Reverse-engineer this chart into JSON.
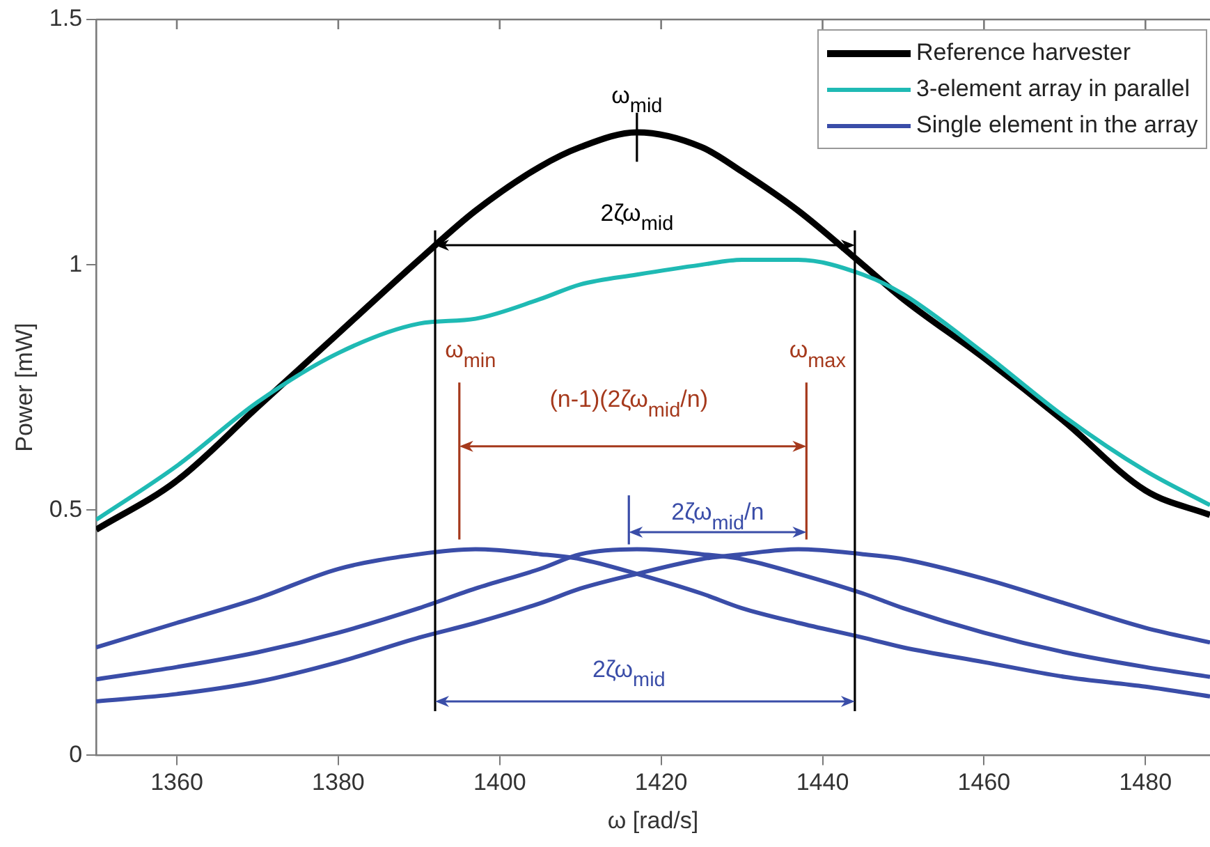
{
  "chart_data": {
    "type": "line",
    "xlabel": "ω [rad/s]",
    "ylabel": "Power [mW]",
    "x": [
      1350,
      1360,
      1370,
      1380,
      1390,
      1397,
      1405,
      1410,
      1417,
      1425,
      1430,
      1437,
      1445,
      1450,
      1460,
      1470,
      1480,
      1488
    ],
    "xlim": [
      1350,
      1488
    ],
    "xticks": [
      1360,
      1380,
      1400,
      1420,
      1440,
      1460,
      1480
    ],
    "ylim": [
      0,
      1.5
    ],
    "yticks": [
      0,
      0.5,
      1,
      1.5
    ],
    "legend": "top right",
    "marker": "none",
    "line_style": "solid",
    "series": [
      {
        "name": "Reference harvester",
        "color": "#000000",
        "values": [
          0.46,
          0.56,
          0.71,
          0.86,
          1.01,
          1.11,
          1.2,
          1.24,
          1.27,
          1.24,
          1.19,
          1.11,
          1.0,
          0.93,
          0.81,
          0.68,
          0.54,
          0.49
        ]
      },
      {
        "name": "3-element array in parallel",
        "color": "#1fbab4",
        "values": [
          0.48,
          0.59,
          0.72,
          0.82,
          0.88,
          0.89,
          0.93,
          0.96,
          0.98,
          1.0,
          1.01,
          1.01,
          0.98,
          0.94,
          0.82,
          0.69,
          0.58,
          0.51
        ]
      },
      {
        "name": "Single element in the array",
        "color": "#3a4da8",
        "values": [
          0.22,
          0.27,
          0.32,
          0.38,
          0.41,
          0.42,
          0.41,
          0.4,
          0.37,
          0.33,
          0.3,
          0.27,
          0.24,
          0.22,
          0.19,
          0.16,
          0.14,
          0.12
        ]
      },
      {
        "color": "#3a4da8",
        "values": [
          0.155,
          0.18,
          0.21,
          0.25,
          0.3,
          0.34,
          0.38,
          0.41,
          0.42,
          0.41,
          0.4,
          0.37,
          0.33,
          0.3,
          0.25,
          0.21,
          0.18,
          0.16
        ]
      },
      {
        "color": "#3a4da8",
        "values": [
          0.11,
          0.125,
          0.15,
          0.19,
          0.24,
          0.27,
          0.31,
          0.34,
          0.37,
          0.4,
          0.41,
          0.42,
          0.41,
          0.4,
          0.36,
          0.31,
          0.26,
          0.23
        ]
      }
    ],
    "ref_lines": [
      {
        "axis": "x",
        "value": 1392,
        "label": null,
        "color": "#000000"
      },
      {
        "axis": "x",
        "value": 1444,
        "label": null,
        "color": "#000000"
      },
      {
        "axis": "x",
        "value": 1395,
        "label": "ω$_{min}$",
        "color": "#a5391c"
      },
      {
        "axis": "x",
        "value": 1438,
        "label": "ω$_{max}$",
        "color": "#a5391c"
      }
    ],
    "annotations": [
      "ω$_{mid}$",
      "2ζω$_{mid}$",
      "(n-1)(2ζω$_{mid}$/n)",
      "2ζω$_{mid}$/n",
      "2ζω$_{mid}$"
    ]
  }
}
